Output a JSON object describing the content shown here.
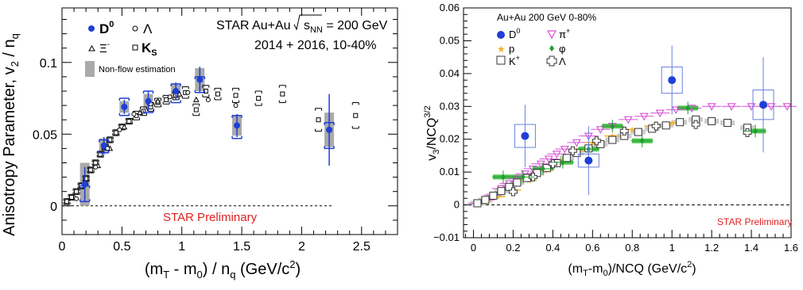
{
  "chart_data": [
    {
      "type": "scatter",
      "ylabel_main": "Anisotropy Parameter, v",
      "ylabel_sub": "2",
      "ylabel_tail": " / n",
      "ylabel_sub2": "q",
      "xlabel_main": "(m",
      "xlabel_sub1": "T",
      "xlabel_mid": " - m",
      "xlabel_sub2": "0",
      "xlabel_mid2": ") / n",
      "xlabel_sub3": "q",
      "xlabel_tail": " (GeV/c",
      "xlabel_sup": "2",
      "xlabel_end": ")",
      "xlim": [
        0,
        2.8
      ],
      "ylim": [
        -0.02,
        0.138
      ],
      "xticks": [
        0,
        0.5,
        1,
        1.5,
        2,
        2.5
      ],
      "xtick_labels": [
        "0",
        "0.5",
        "1",
        "1.5",
        "2",
        "2.5"
      ],
      "yticks": [
        0,
        0.05,
        0.1
      ],
      "ytick_labels": [
        "0",
        "0.05",
        "0.1"
      ],
      "header_line1": "STAR Au+Au ",
      "sqrt_label": "s",
      "sqrt_sub": "NN",
      "header_line1_tail": " = 200 GeV",
      "header_line2": "2014 + 2016, 10-40%",
      "preliminary": "STAR Preliminary",
      "nonflow_label": "Non-flow estimation",
      "legend": [
        {
          "label": "D",
          "sup": "0",
          "marker": "filled-circle"
        },
        {
          "label": "Λ",
          "marker": "open-circle"
        },
        {
          "label": "Ξ",
          "sup": "-",
          "marker": "open-triangle"
        },
        {
          "label": "K",
          "sub": "S",
          "marker": "open-square"
        }
      ],
      "series": [
        {
          "name": "D0",
          "x": [
            0.19,
            0.35,
            0.52,
            0.72,
            0.95,
            1.15,
            1.46,
            2.23
          ],
          "y": [
            0.015,
            0.042,
            0.069,
            0.073,
            0.08,
            0.088,
            0.056,
            0.053
          ],
          "yerr": [
            0.012,
            0.006,
            0.005,
            0.007,
            0.006,
            0.009,
            0.008,
            0.025
          ],
          "sys_lo": [
            0.003,
            0.037,
            0.063,
            0.065,
            0.072,
            0.079,
            0.047,
            0.04
          ],
          "sys_hi": [
            0.014,
            0.046,
            0.075,
            0.08,
            0.085,
            0.09,
            0.063,
            0.058
          ],
          "box": [
            0.015,
            0.005,
            0.004,
            0.005,
            0.005,
            0.008,
            0.007,
            0.012
          ]
        },
        {
          "name": "Lambda",
          "x": [
            0.12,
            0.2,
            0.28,
            0.38,
            0.48,
            0.6,
            0.74,
            0.9,
            1.05,
            1.22,
            1.45
          ],
          "y": [
            0.005,
            0.015,
            0.027,
            0.04,
            0.053,
            0.064,
            0.071,
            0.076,
            0.079,
            0.074,
            0.07
          ]
        },
        {
          "name": "Xi",
          "x": [
            0.3,
            0.4,
            0.52,
            0.65,
            0.8,
            0.98,
            1.12
          ],
          "y": [
            0.028,
            0.04,
            0.055,
            0.065,
            0.073,
            0.078,
            0.074
          ]
        },
        {
          "name": "KS",
          "x": [
            0.04,
            0.08,
            0.12,
            0.16,
            0.2,
            0.24,
            0.28,
            0.32,
            0.36,
            0.4,
            0.45,
            0.5,
            0.56,
            0.62,
            0.68,
            0.74,
            0.8,
            0.87,
            0.95,
            1.03,
            1.12,
            1.2,
            1.3,
            1.45,
            1.64,
            1.84,
            2.14,
            2.45
          ],
          "y": [
            0.003,
            0.006,
            0.01,
            0.014,
            0.019,
            0.025,
            0.03,
            0.036,
            0.041,
            0.046,
            0.051,
            0.055,
            0.059,
            0.063,
            0.066,
            0.069,
            0.072,
            0.074,
            0.077,
            0.079,
            0.067,
            0.08,
            0.078,
            0.077,
            0.075,
            0.078,
            0.06,
            0.063
          ],
          "err": [
            0.002,
            0.002,
            0.002,
            0.002,
            0.002,
            0.002,
            0.002,
            0.002,
            0.002,
            0.002,
            0.002,
            0.002,
            0.002,
            0.003,
            0.003,
            0.003,
            0.003,
            0.003,
            0.003,
            0.004,
            0.004,
            0.004,
            0.004,
            0.005,
            0.005,
            0.006,
            0.008,
            0.009
          ]
        }
      ]
    },
    {
      "type": "scatter",
      "ylabel_main": "v",
      "ylabel_sub": "3",
      "ylabel_tail": "/NCQ",
      "ylabel_sup": "3/2",
      "xlabel_main": "(m",
      "xlabel_sub1": "T",
      "xlabel_mid": "-m",
      "xlabel_sub2": "0",
      "xlabel_tail": ")/NCQ (GeV/c",
      "xlabel_sup": "2",
      "xlabel_end": ")",
      "xlim": [
        -0.05,
        1.6
      ],
      "ylim": [
        -0.01,
        0.06
      ],
      "xticks": [
        0,
        0.2,
        0.4,
        0.6,
        0.8,
        1,
        1.2,
        1.4,
        1.6
      ],
      "xtick_labels": [
        "0",
        "0.2",
        "0.4",
        "0.6",
        "0.8",
        "1",
        "1.2",
        "1.4",
        "1.6"
      ],
      "yticks": [
        -0.01,
        0,
        0.01,
        0.02,
        0.03,
        0.04,
        0.05,
        0.06
      ],
      "ytick_labels": [
        "−0.01",
        "0",
        "0.01",
        "0.02",
        "0.03",
        "0.04",
        "0.05",
        "0.06"
      ],
      "header": "Au+Au 200 GeV 0-80%",
      "preliminary": "STAR Preliminary",
      "legend": [
        {
          "label": "D",
          "sup": "0",
          "marker": "filled-circle",
          "color": "#1f3fd6"
        },
        {
          "label": "π",
          "sup": "+",
          "marker": "open-down-triangle",
          "color": "#d64fd6"
        },
        {
          "label": "p",
          "marker": "star",
          "color": "#f0b429"
        },
        {
          "label": "φ",
          "marker": "filled-diamond",
          "color": "#1e9e2e"
        },
        {
          "label": "K",
          "sup": "+",
          "marker": "open-square",
          "color": "#333333"
        },
        {
          "label": "Λ",
          "marker": "open-cross",
          "color": "#333333"
        }
      ],
      "series": [
        {
          "name": "D0",
          "x": [
            0.26,
            0.58,
            1.0,
            1.46
          ],
          "y": [
            0.021,
            0.0135,
            0.038,
            0.0305
          ],
          "yerr": [
            0.0095,
            0.0105,
            0.0105,
            0.0145
          ],
          "sys": [
            0.0035,
            0.002,
            0.004,
            0.0045
          ]
        },
        {
          "name": "pi+",
          "x": [
            0.02,
            0.06,
            0.1,
            0.14,
            0.18,
            0.22,
            0.26,
            0.3,
            0.34,
            0.38,
            0.42,
            0.46,
            0.52,
            0.58,
            0.64,
            0.7,
            0.78,
            0.86,
            0.94,
            1.02,
            1.1,
            1.2,
            1.3,
            1.4,
            1.5,
            1.58
          ],
          "y": [
            0.0005,
            0.0015,
            0.003,
            0.005,
            0.0065,
            0.008,
            0.0095,
            0.011,
            0.0125,
            0.014,
            0.0155,
            0.017,
            0.019,
            0.021,
            0.023,
            0.024,
            0.026,
            0.027,
            0.028,
            0.029,
            0.0295,
            0.03,
            0.03,
            0.03,
            0.03,
            0.03
          ]
        },
        {
          "name": "p",
          "x": [
            0.05,
            0.12,
            0.2,
            0.28,
            0.36,
            0.44,
            0.52,
            0.6,
            0.7,
            0.8,
            0.9,
            1.0
          ],
          "y": [
            0.001,
            0.0025,
            0.0045,
            0.0075,
            0.0105,
            0.0135,
            0.0165,
            0.019,
            0.021,
            0.023,
            0.024,
            0.025
          ]
        },
        {
          "name": "phi",
          "x": [
            0.15,
            0.25,
            0.35,
            0.45,
            0.58,
            0.7,
            0.85,
            1.08,
            1.42
          ],
          "y": [
            0.0085,
            0.0085,
            0.011,
            0.013,
            0.017,
            0.024,
            0.0195,
            0.0295,
            0.0225
          ]
        },
        {
          "name": "K+",
          "x": [
            0.02,
            0.06,
            0.1,
            0.14,
            0.18,
            0.22,
            0.27,
            0.32,
            0.37,
            0.42,
            0.47,
            0.52,
            0.58,
            0.64,
            0.7,
            0.76,
            0.83,
            0.9,
            0.97,
            1.04,
            1.12,
            1.2,
            1.28,
            1.38
          ],
          "y": [
            0.0005,
            0.0015,
            0.0028,
            0.0042,
            0.0055,
            0.0068,
            0.0082,
            0.0097,
            0.0112,
            0.0127,
            0.0143,
            0.0158,
            0.0172,
            0.0185,
            0.0198,
            0.021,
            0.0222,
            0.0232,
            0.0242,
            0.0252,
            0.026,
            0.0255,
            0.025,
            0.0235
          ]
        },
        {
          "name": "Lambda",
          "x": [
            0.2,
            0.3,
            0.4,
            0.5,
            0.62,
            0.76,
            0.92,
            1.12,
            1.38
          ],
          "y": [
            0.004,
            0.0085,
            0.0125,
            0.0165,
            0.0195,
            0.0225,
            0.024,
            0.0245,
            0.022
          ]
        }
      ]
    }
  ]
}
